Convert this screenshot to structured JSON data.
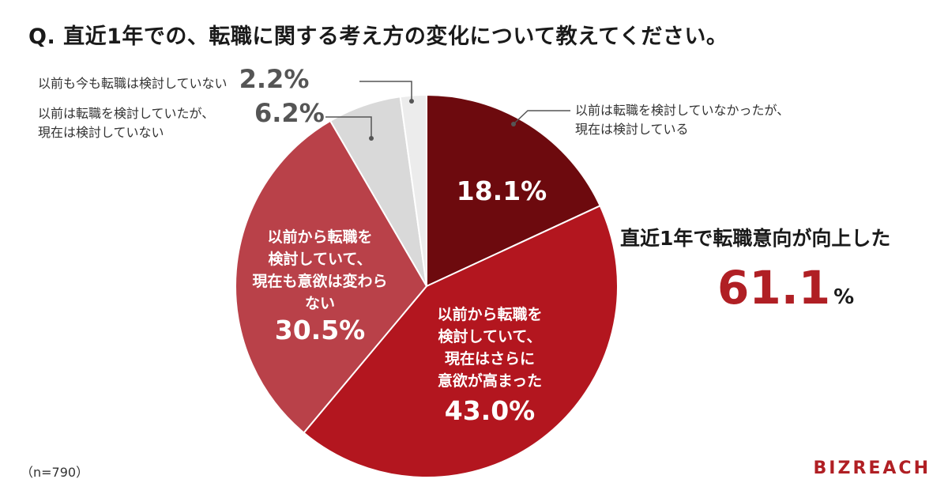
{
  "title": "Q. 直近1年での、転職に関する考え方の変化について教えてください。",
  "note": "（n=790）",
  "brand": "BIZREACH",
  "summary": {
    "label": "直近1年で転職意向が向上した",
    "value": "61.1",
    "unit": "%"
  },
  "chart_data": {
    "type": "pie",
    "title": "Q. 直近1年での、転職に関する考え方の変化について教えてください。",
    "slices": [
      {
        "label": "以前は転職を検討していなかったが、現在は検討している",
        "value": 18.1,
        "display": "18.1%",
        "color": "#6d0a0e"
      },
      {
        "label": "以前から転職を検討していて、現在はさらに意欲が高まった",
        "value": 43.0,
        "display": "43.0%",
        "color": "#b3161f"
      },
      {
        "label": "以前から転職を検討していて、現在も意欲は変わらない",
        "value": 30.5,
        "display": "30.5%",
        "color": "#b94149"
      },
      {
        "label": "以前は転職を検討していたが、現在は検討していない",
        "value": 6.2,
        "display": "6.2%",
        "color": "#d9d9d9"
      },
      {
        "label": "以前も今も転職は検討していない",
        "value": 2.2,
        "display": "2.2%",
        "color": "#ececec"
      }
    ]
  },
  "labels": {
    "s1_line1": "以前は転職を検討していなかったが、",
    "s1_line2": "現在は検討している",
    "s2_line1": "以前から転職を",
    "s2_line2": "検討していて、",
    "s2_line3": "現在はさらに",
    "s2_line4": "意欲が高まった",
    "s3_line1": "以前から転職を",
    "s3_line2": "検討していて、",
    "s3_line3": "現在も意欲は変わら",
    "s3_line4": "ない",
    "s4_line1": "以前は転職を検討していたが、",
    "s4_line2": "現在は検討していない",
    "s5_line1": "以前も今も転職は検討していない"
  }
}
